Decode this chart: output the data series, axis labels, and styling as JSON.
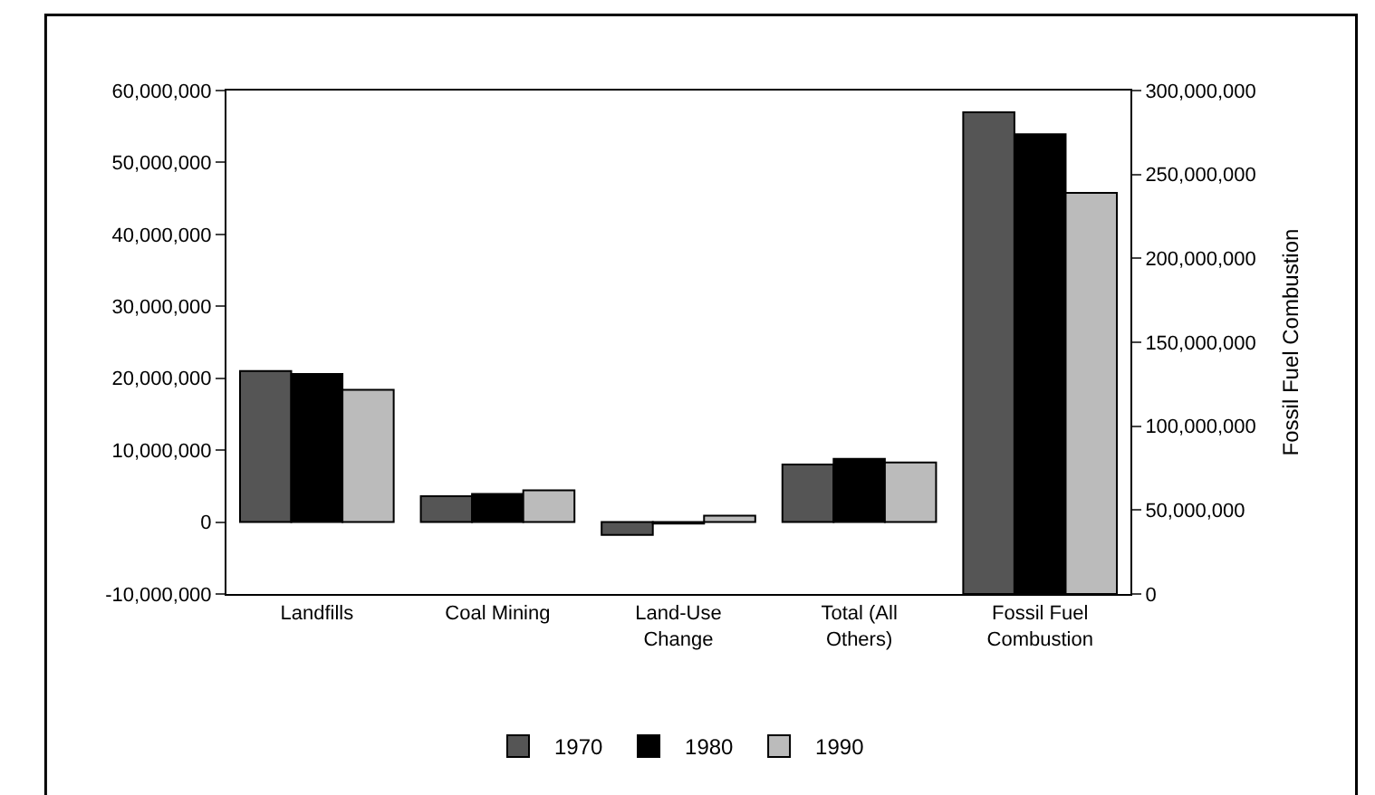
{
  "chart_data": {
    "type": "bar",
    "y2label": "Fossil Fuel Combustion",
    "categories": [
      "Landfills",
      "Coal Mining",
      "Land-Use Change",
      "Total (All Others)",
      "Fossil Fuel Combustion"
    ],
    "series": [
      {
        "name": "1970",
        "color": "#555555",
        "values": [
          21000000,
          3600000,
          -1800000,
          8000000,
          null
        ]
      },
      {
        "name": "1980",
        "color": "#000000",
        "values": [
          20600000,
          3900000,
          -200000,
          8800000,
          null
        ]
      },
      {
        "name": "1990",
        "color": "#bbbbbb",
        "values": [
          18400000,
          4400000,
          900000,
          8300000,
          null
        ]
      },
      {
        "color": "#555555",
        "axis": "y2",
        "values": [
          null,
          null,
          null,
          null,
          287000000
        ]
      },
      {
        "color": "#000000",
        "axis": "y2",
        "values": [
          null,
          null,
          null,
          null,
          274000000
        ]
      },
      {
        "color": "#bbbbbb",
        "axis": "y2",
        "values": [
          null,
          null,
          null,
          null,
          239000000
        ]
      }
    ],
    "ylim": [
      -10000000,
      60000000
    ],
    "yticks": [
      {
        "value": -10000000,
        "label": "-10,000,000"
      },
      {
        "value": 0,
        "label": "0"
      },
      {
        "value": 10000000,
        "label": "10,000,000"
      },
      {
        "value": 20000000,
        "label": "20,000,000"
      },
      {
        "value": 30000000,
        "label": "30,000,000"
      },
      {
        "value": 40000000,
        "label": "40,000,000"
      },
      {
        "value": 50000000,
        "label": "50,000,000"
      },
      {
        "value": 60000000,
        "label": "60,000,000"
      }
    ],
    "y2lim": [
      0,
      300000000
    ],
    "y2ticks": [
      {
        "value": 0,
        "label": "0"
      },
      {
        "value": 50000000,
        "label": "50,000,000"
      },
      {
        "value": 100000000,
        "label": "100,000,000"
      },
      {
        "value": 150000000,
        "label": "150,000,000"
      },
      {
        "value": 200000000,
        "label": "200,000,000"
      },
      {
        "value": 250000000,
        "label": "250,000,000"
      },
      {
        "value": 300000000,
        "label": "300,000,000"
      }
    ],
    "legend": "bottom"
  }
}
